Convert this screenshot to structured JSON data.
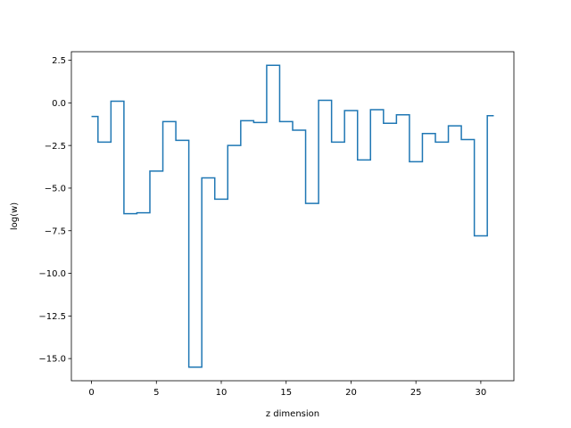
{
  "chart_data": {
    "type": "line",
    "drawstyle": "steps-mid",
    "title": "",
    "xlabel": "z dimension",
    "ylabel": "log(w)",
    "xlim": [
      -1.55,
      32.55
    ],
    "ylim": [
      -16.3,
      3.0
    ],
    "xticks": [
      0,
      5,
      10,
      15,
      20,
      25,
      30
    ],
    "xtick_labels": [
      "0",
      "5",
      "10",
      "15",
      "20",
      "25",
      "30"
    ],
    "yticks": [
      2.5,
      0.0,
      -2.5,
      -5.0,
      -7.5,
      -10.0,
      -12.5,
      -15.0
    ],
    "ytick_labels": [
      "2.5",
      "0.0",
      "−2.5",
      "−5.0",
      "−7.5",
      "−10.0",
      "−12.5",
      "−15.0"
    ],
    "grid": false,
    "legend": "none",
    "series": [
      {
        "color": "#1f77b4",
        "x": [
          0,
          1,
          2,
          3,
          4,
          5,
          6,
          7,
          8,
          9,
          10,
          11,
          12,
          13,
          14,
          15,
          16,
          17,
          18,
          19,
          20,
          21,
          22,
          23,
          24,
          25,
          26,
          27,
          28,
          29,
          30,
          31
        ],
        "y": [
          -0.8,
          -2.3,
          0.1,
          -6.5,
          -6.45,
          -4.0,
          -1.1,
          -2.2,
          -15.5,
          -4.4,
          -5.65,
          -2.5,
          -1.05,
          -1.15,
          2.2,
          -1.1,
          -1.6,
          -5.9,
          0.15,
          -2.3,
          -0.45,
          -3.35,
          -0.4,
          -1.2,
          -0.7,
          -3.45,
          -1.8,
          -2.3,
          -1.35,
          -2.15,
          -7.8,
          -0.75
        ]
      }
    ]
  }
}
